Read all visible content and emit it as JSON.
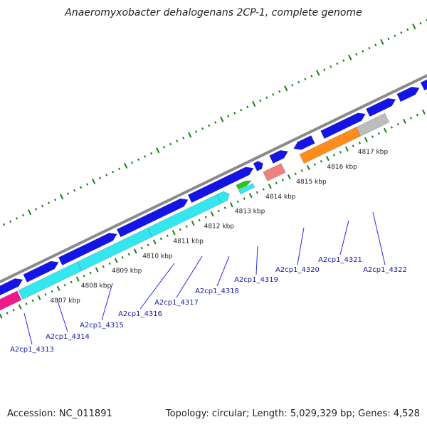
{
  "title": "Anaeromyxobacter dehalogenans 2CP-1, complete genome",
  "footer": {
    "accession": "Accession: NC_011891",
    "stats": "Topology: circular; Length: 5,029,329 bp; Genes: 4,528"
  },
  "colors": {
    "backbone": "#8a8a8a",
    "tick": "#1f7a1f",
    "gene_blue": "#1414e6",
    "gene_cyan": "#33e6f0",
    "gene_magenta": "#ee1a8c",
    "gene_orange": "#ff8c1a",
    "gene_gray": "#bdbdbd",
    "gene_olive": "#6b8e23",
    "gene_green": "#22c722",
    "gene_salmon": "#f08080",
    "label_text": "#1a1aa6",
    "leader": "#2a2af0"
  },
  "kbp_labels": [
    "4807 kbp",
    "4808 kbp",
    "4809 kbp",
    "4810 kbp",
    "4811 kbp",
    "4812 kbp",
    "4813 kbp",
    "4814 kbp",
    "4815 kbp",
    "4816 kbp",
    "4817 kbp"
  ],
  "gene_labels": [
    "A2cp1_4313",
    "A2cp1_4314",
    "A2cp1_4315",
    "A2cp1_4316",
    "A2cp1_4317",
    "A2cp1_4318",
    "A2cp1_4319",
    "A2cp1_4320",
    "A2cp1_4321",
    "A2cp1_4322"
  ]
}
